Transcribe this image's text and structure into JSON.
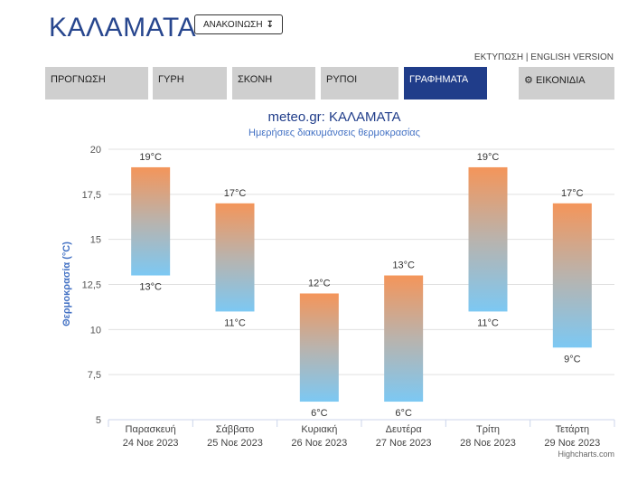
{
  "header": {
    "city": "ΚΑΛΑΜΑΤΑ",
    "announce_label": "ΑΝΑΚΟΙΝΩΣΗ",
    "print_label": "ΕΚΤΥΠΩΣΗ",
    "english_label": "ENGLISH VERSION"
  },
  "tabs": [
    {
      "label": "ΠΡΟΓΝΩΣΗ"
    },
    {
      "label": "ΓΥΡΗ"
    },
    {
      "label": "ΣΚΟΝΗ"
    },
    {
      "label": "ΡΥΠΟΙ"
    },
    {
      "label": "ΓΡΑΦΗΜΑΤΑ",
      "active": true
    },
    {
      "label": "ΕΙΚΟΝΙΔΙΑ",
      "icon": "gear-icon"
    }
  ],
  "chart_data": {
    "type": "bar",
    "title": "meteo.gr: ΚΑΛΑΜΑΤΑ",
    "subtitle": "Ημερήσιες διακυμάνσεις θερμοκρασίας",
    "ylabel": "Θερμοκρασία (°C)",
    "ylim": [
      5,
      20
    ],
    "yticks": [
      "5",
      "7,5",
      "10",
      "12,5",
      "15",
      "17,5",
      "20"
    ],
    "yticks_values": [
      5,
      7.5,
      10,
      12.5,
      15,
      17.5,
      20
    ],
    "categories": [
      {
        "day": "Παρασκευή",
        "date": "24 Νοε 2023"
      },
      {
        "day": "Σάββατο",
        "date": "25 Νοε 2023"
      },
      {
        "day": "Κυριακή",
        "date": "26 Νοε 2023"
      },
      {
        "day": "Δευτέρα",
        "date": "27 Νοε 2023"
      },
      {
        "day": "Τρίτη",
        "date": "28 Νοε 2023"
      },
      {
        "day": "Τετάρτη",
        "date": "29 Νοε 2023"
      }
    ],
    "series": [
      {
        "low": [
          13,
          11,
          6,
          6,
          11,
          9
        ],
        "high": [
          19,
          17,
          12,
          13,
          19,
          17
        ],
        "low_labels": [
          "13°C",
          "11°C",
          "6°C",
          "6°C",
          "11°C",
          "9°C"
        ],
        "high_labels": [
          "19°C",
          "17°C",
          "12°C",
          "13°C",
          "19°C",
          "17°C"
        ]
      }
    ],
    "colors": {
      "top": "#f4955a",
      "bottom": "#7cc8f3",
      "title": "#203d8a",
      "subtitle": "#4472c4"
    },
    "credit": "Highcharts.com"
  }
}
